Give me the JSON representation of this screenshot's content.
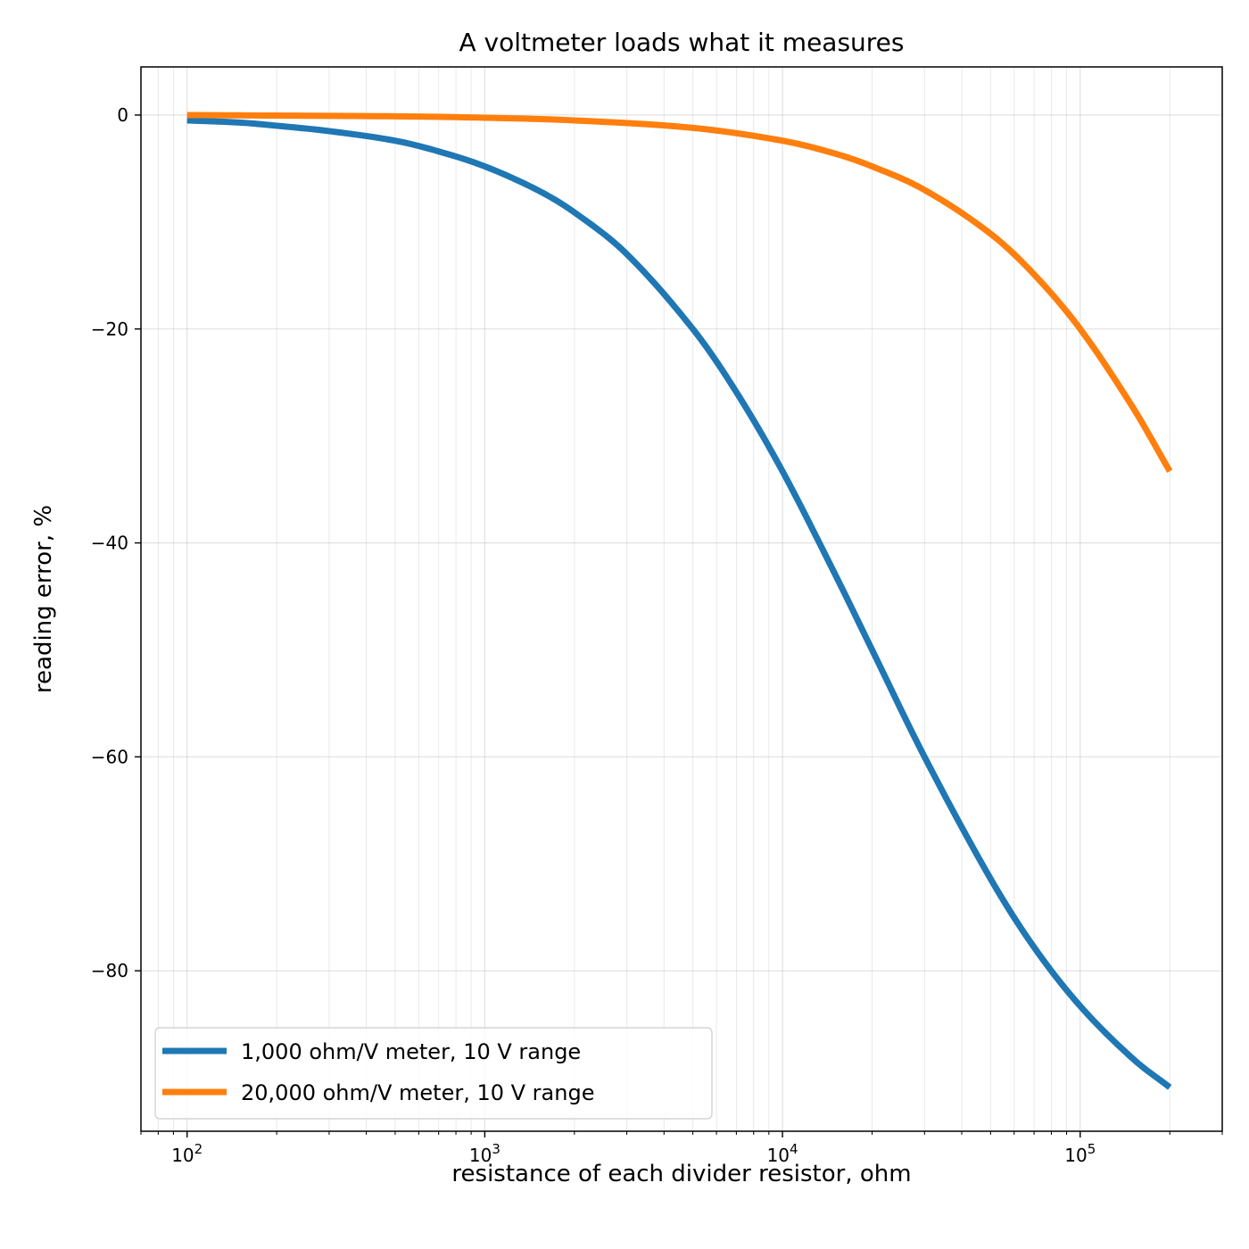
{
  "chart_data": {
    "type": "line",
    "title": "A voltmeter loads what it measures",
    "xlabel": "resistance of each divider resistor, ohm",
    "ylabel": "reading error, %",
    "x_scale": "log",
    "xlim": [
      70,
      300000
    ],
    "ylim": [
      -95,
      4.5
    ],
    "x_ticks": [
      {
        "value": 100,
        "base": "10",
        "exp": "2"
      },
      {
        "value": 1000,
        "base": "10",
        "exp": "3"
      },
      {
        "value": 10000,
        "base": "10",
        "exp": "4"
      },
      {
        "value": 100000,
        "base": "10",
        "exp": "5"
      }
    ],
    "y_ticks": [
      {
        "value": 0,
        "label": "0"
      },
      {
        "value": -20,
        "label": "−20"
      },
      {
        "value": -40,
        "label": "−40"
      },
      {
        "value": -60,
        "label": "−60"
      },
      {
        "value": -80,
        "label": "−80"
      }
    ],
    "grid": true,
    "legend_position": "lower-left",
    "series": [
      {
        "name": "1,000 ohm/V meter, 10 V range",
        "color": "#1f77b4",
        "x": [
          100,
          150,
          200,
          300,
          500,
          700,
          1000,
          1500,
          2000,
          3000,
          5000,
          7000,
          10000,
          15000,
          20000,
          30000,
          50000,
          70000,
          100000,
          150000,
          200000
        ],
        "y": [
          -0.5,
          -0.7,
          -1.0,
          -1.5,
          -2.4,
          -3.4,
          -4.8,
          -7.0,
          -9.1,
          -13.0,
          -20.0,
          -25.9,
          -33.3,
          -42.9,
          -50.0,
          -60.0,
          -71.4,
          -77.8,
          -83.3,
          -88.2,
          -90.9
        ]
      },
      {
        "name": "20,000 ohm/V meter, 10 V range",
        "color": "#ff7f0e",
        "x": [
          100,
          200,
          500,
          1000,
          2000,
          5000,
          10000,
          15000,
          20000,
          30000,
          50000,
          70000,
          100000,
          150000,
          200000
        ],
        "y": [
          0.0,
          -0.05,
          -0.12,
          -0.25,
          -0.5,
          -1.2,
          -2.4,
          -3.6,
          -4.8,
          -7.0,
          -11.1,
          -14.9,
          -20.0,
          -27.3,
          -33.3
        ]
      }
    ]
  }
}
